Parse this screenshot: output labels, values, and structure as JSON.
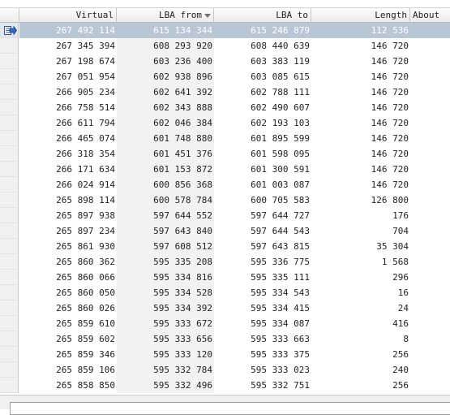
{
  "columns": {
    "virtual": "Virtual",
    "lba_from": "LBA from",
    "lba_to": "LBA to",
    "length": "Length",
    "about": "About"
  },
  "rows": [
    {
      "virtual": "267 492 114",
      "lba_from": "615 134 344",
      "lba_to": "615 246 879",
      "length": "112 536",
      "selected": true
    },
    {
      "virtual": "267 345 394",
      "lba_from": "608 293 920",
      "lba_to": "608 440 639",
      "length": "146 720"
    },
    {
      "virtual": "267 198 674",
      "lba_from": "603 236 400",
      "lba_to": "603 383 119",
      "length": "146 720"
    },
    {
      "virtual": "267 051 954",
      "lba_from": "602 938 896",
      "lba_to": "603 085 615",
      "length": "146 720"
    },
    {
      "virtual": "266 905 234",
      "lba_from": "602 641 392",
      "lba_to": "602 788 111",
      "length": "146 720"
    },
    {
      "virtual": "266 758 514",
      "lba_from": "602 343 888",
      "lba_to": "602 490 607",
      "length": "146 720"
    },
    {
      "virtual": "266 611 794",
      "lba_from": "602 046 384",
      "lba_to": "602 193 103",
      "length": "146 720"
    },
    {
      "virtual": "266 465 074",
      "lba_from": "601 748 880",
      "lba_to": "601 895 599",
      "length": "146 720"
    },
    {
      "virtual": "266 318 354",
      "lba_from": "601 451 376",
      "lba_to": "601 598 095",
      "length": "146 720"
    },
    {
      "virtual": "266 171 634",
      "lba_from": "601 153 872",
      "lba_to": "601 300 591",
      "length": "146 720"
    },
    {
      "virtual": "266 024 914",
      "lba_from": "600 856 368",
      "lba_to": "601 003 087",
      "length": "146 720"
    },
    {
      "virtual": "265 898 114",
      "lba_from": "600 578 784",
      "lba_to": "600 705 583",
      "length": "126 800"
    },
    {
      "virtual": "265 897 938",
      "lba_from": "597 644 552",
      "lba_to": "597 644 727",
      "length": "176"
    },
    {
      "virtual": "265 897 234",
      "lba_from": "597 643 840",
      "lba_to": "597 644 543",
      "length": "704"
    },
    {
      "virtual": "265 861 930",
      "lba_from": "597 608 512",
      "lba_to": "597 643 815",
      "length": "35 304"
    },
    {
      "virtual": "265 860 362",
      "lba_from": "595 335 208",
      "lba_to": "595 336 775",
      "length": "1 568"
    },
    {
      "virtual": "265 860 066",
      "lba_from": "595 334 816",
      "lba_to": "595 335 111",
      "length": "296"
    },
    {
      "virtual": "265 860 050",
      "lba_from": "595 334 528",
      "lba_to": "595 334 543",
      "length": "16"
    },
    {
      "virtual": "265 860 026",
      "lba_from": "595 334 392",
      "lba_to": "595 334 415",
      "length": "24"
    },
    {
      "virtual": "265 859 610",
      "lba_from": "595 333 672",
      "lba_to": "595 334 087",
      "length": "416"
    },
    {
      "virtual": "265 859 602",
      "lba_from": "595 333 656",
      "lba_to": "595 333 663",
      "length": "8"
    },
    {
      "virtual": "265 859 346",
      "lba_from": "595 333 120",
      "lba_to": "595 333 375",
      "length": "256"
    },
    {
      "virtual": "265 859 106",
      "lba_from": "595 332 784",
      "lba_to": "595 333 023",
      "length": "240"
    },
    {
      "virtual": "265 858 850",
      "lba_from": "595 332 496",
      "lba_to": "595 332 751",
      "length": "256"
    }
  ],
  "colors": {
    "selected_bg": "#b8c6d6",
    "shade_bg": "#f2f2f2",
    "header_bg": "#ececec"
  },
  "icons": {
    "row_pointer": "current-row-pointer-icon",
    "sort": "sort-descending-icon"
  }
}
